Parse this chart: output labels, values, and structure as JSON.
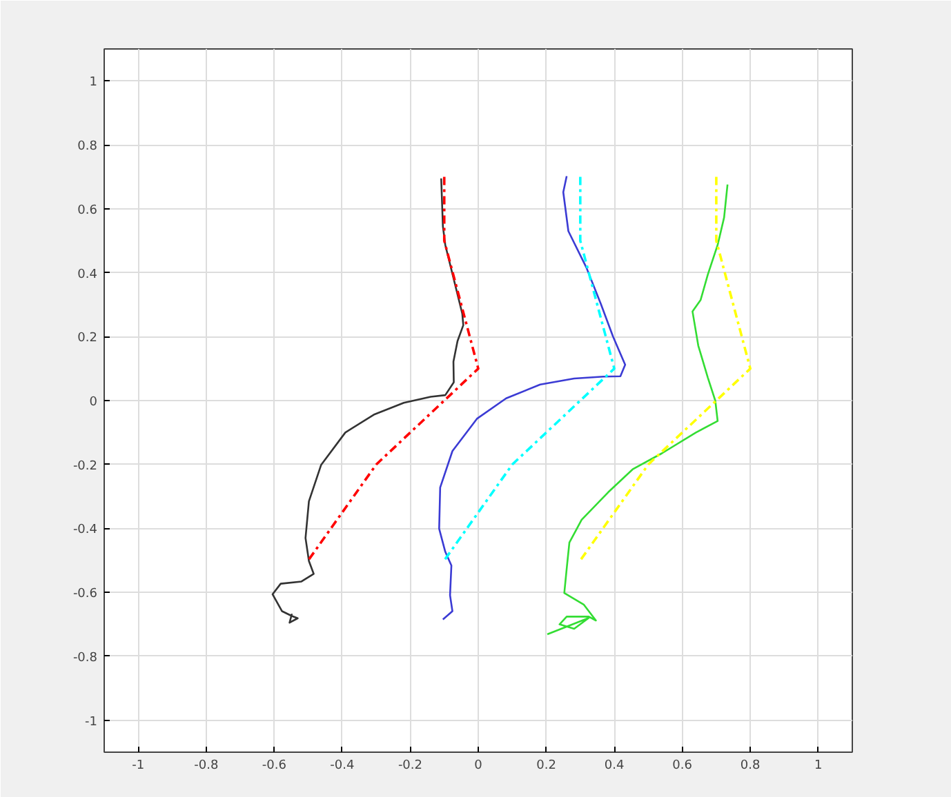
{
  "chart_data": {
    "type": "line",
    "xlim": [
      -1.1,
      1.1
    ],
    "ylim": [
      -1.1,
      1.1
    ],
    "xticks": [
      -1,
      -0.8,
      -0.6,
      -0.4,
      -0.2,
      0,
      0.2,
      0.4,
      0.6,
      0.8,
      1
    ],
    "yticks": [
      -1,
      -0.8,
      -0.6,
      -0.4,
      -0.2,
      0,
      0.2,
      0.4,
      0.6,
      0.8,
      1
    ],
    "grid": true,
    "marker": "none",
    "series": [
      {
        "color": "#333333",
        "line_style": "solid",
        "x": [
          -0.109,
          -0.104,
          -0.097,
          -0.047,
          -0.044,
          -0.061,
          -0.073,
          -0.072,
          -0.097,
          -0.14,
          -0.219,
          -0.305,
          -0.391,
          -0.462,
          -0.498,
          -0.508,
          -0.498,
          -0.484,
          -0.52,
          -0.581,
          -0.605,
          -0.577,
          -0.548,
          -0.531,
          -0.555,
          -0.548
        ],
        "values": [
          0.695,
          0.545,
          0.487,
          0.272,
          0.236,
          0.186,
          0.122,
          0.057,
          0.017,
          0.012,
          -0.007,
          -0.043,
          -0.1,
          -0.201,
          -0.315,
          -0.43,
          -0.502,
          -0.542,
          -0.566,
          -0.573,
          -0.606,
          -0.659,
          -0.674,
          -0.681,
          -0.695,
          -0.667
        ]
      },
      {
        "color": "#ff0000",
        "line_style": "dashed",
        "x": [
          -0.1,
          -0.1,
          0,
          -0.3,
          -0.5
        ],
        "values": [
          0.7,
          0.5,
          0.1,
          -0.2,
          -0.5
        ]
      },
      {
        "color": "#3b3bd4",
        "line_style": "solid",
        "x": [
          0.26,
          0.25,
          0.265,
          0.318,
          0.361,
          0.396,
          0.432,
          0.418,
          0.368,
          0.282,
          0.182,
          0.082,
          -0.004,
          -0.076,
          -0.112,
          -0.115,
          -0.097,
          -0.079,
          -0.083,
          -0.076,
          -0.104
        ],
        "values": [
          0.702,
          0.652,
          0.53,
          0.416,
          0.301,
          0.201,
          0.112,
          0.076,
          0.075,
          0.069,
          0.05,
          0.007,
          -0.057,
          -0.158,
          -0.272,
          -0.401,
          -0.473,
          -0.516,
          -0.609,
          -0.659,
          -0.685
        ]
      },
      {
        "color": "#00ffff",
        "line_style": "dashed",
        "x": [
          0.3,
          0.3,
          0.4,
          0.1,
          -0.1
        ],
        "values": [
          0.7,
          0.5,
          0.1,
          -0.2,
          -0.5
        ]
      },
      {
        "color": "#33dd33",
        "line_style": "solid",
        "x": [
          0.733,
          0.723,
          0.704,
          0.675,
          0.654,
          0.63,
          0.647,
          0.675,
          0.697,
          0.704,
          0.64,
          0.54,
          0.454,
          0.382,
          0.304,
          0.268,
          0.261,
          0.253,
          0.31,
          0.346,
          0.325,
          0.26,
          0.239,
          0.282,
          0.325,
          0.203
        ],
        "values": [
          0.676,
          0.573,
          0.487,
          0.394,
          0.315,
          0.279,
          0.172,
          0.072,
          0.0,
          -0.064,
          -0.1,
          -0.165,
          -0.215,
          -0.287,
          -0.373,
          -0.444,
          -0.516,
          -0.602,
          -0.638,
          -0.688,
          -0.676,
          -0.676,
          -0.7,
          -0.714,
          -0.68,
          -0.731
        ]
      },
      {
        "color": "#ffff00",
        "line_style": "dashed",
        "x": [
          0.7,
          0.7,
          0.8,
          0.5,
          0.3
        ],
        "values": [
          0.7,
          0.5,
          0.1,
          -0.2,
          -0.5
        ]
      }
    ]
  }
}
